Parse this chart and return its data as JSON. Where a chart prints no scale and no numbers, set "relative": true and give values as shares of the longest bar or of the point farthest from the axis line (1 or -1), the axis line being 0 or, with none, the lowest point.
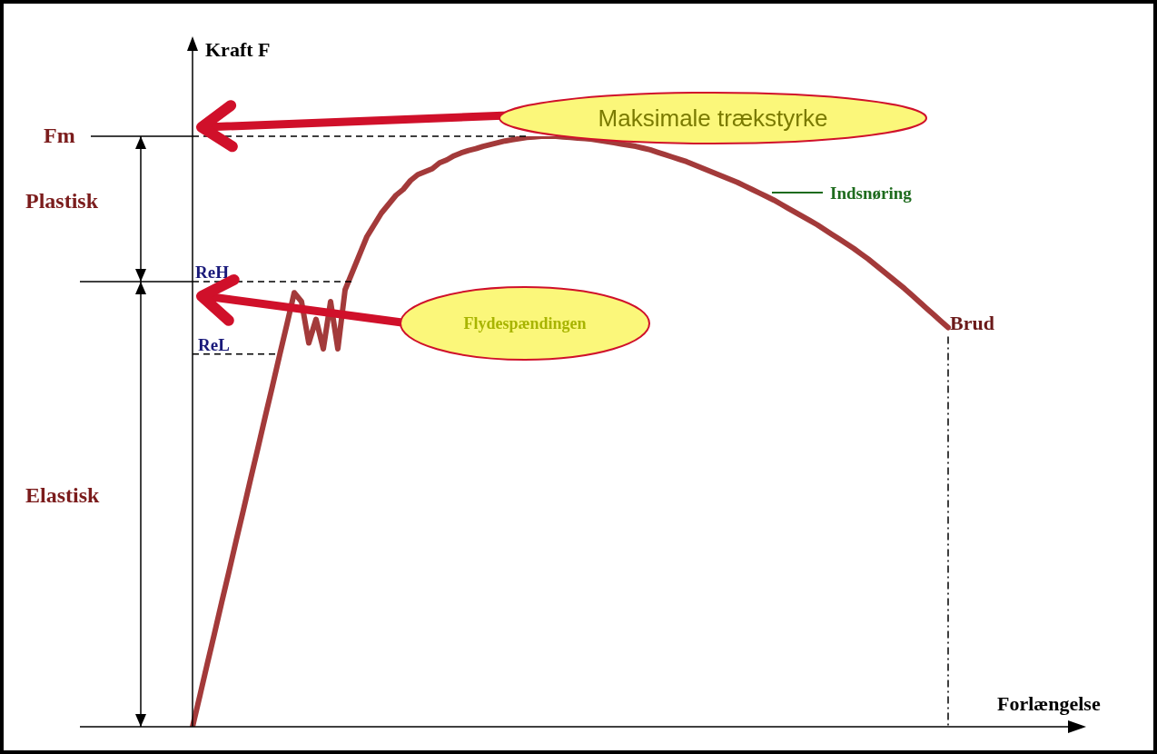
{
  "chart_data": {
    "type": "line",
    "relative": true,
    "ylabel": "Kraft F",
    "xlabel": "Forlængelse",
    "categories": [
      null,
      null,
      null,
      null,
      null,
      null,
      null,
      null,
      null,
      null,
      null,
      null,
      null,
      null,
      null,
      null,
      null,
      null,
      null,
      null,
      null,
      null,
      null,
      null,
      null,
      null,
      null,
      null,
      null,
      null,
      null,
      null,
      null,
      null,
      null,
      null,
      null,
      null,
      null,
      null,
      null,
      null,
      null,
      null,
      null,
      null,
      null,
      null,
      null,
      null,
      null,
      null,
      null,
      null,
      null,
      null,
      null,
      null,
      null,
      null,
      null,
      null,
      null,
      null,
      null,
      null,
      null,
      null,
      null,
      null,
      null,
      null,
      null,
      null,
      null,
      null,
      null,
      null,
      null,
      null,
      null,
      null,
      null,
      null,
      null,
      null,
      null,
      null,
      null,
      null,
      null,
      null,
      null,
      null,
      null,
      null,
      null,
      null,
      null,
      null,
      null,
      null,
      null,
      null,
      null,
      null,
      null,
      null,
      null,
      null,
      null,
      null,
      null,
      null,
      null,
      null,
      null,
      null,
      null,
      null,
      null,
      null
    ],
    "series": [
      {
        "color": "#a33a3a",
        "values": [
          0,
          0.052,
          0.105,
          0.157,
          0.21,
          0.262,
          0.315,
          0.367,
          0.42,
          0.472,
          0.525,
          0.577,
          0.63,
          0.682,
          0.735,
          0.72,
          0.65,
          0.69,
          0.64,
          0.72,
          0.64,
          0.74,
          0.77,
          0.8,
          0.83,
          0.85,
          0.87,
          0.885,
          0.9,
          0.91,
          0.925,
          0.935,
          0.94,
          0.945,
          0.955,
          0.96,
          0.967,
          0.972,
          0.976,
          0.979,
          0.983,
          0.986,
          0.989,
          0.992,
          0.994,
          0.996,
          0.998,
          0.999,
          1,
          1,
          1,
          0.999,
          0.998,
          0.997,
          0.996,
          0.995,
          0.993,
          0.991,
          0.989,
          0.987,
          0.985,
          0.983,
          0.98,
          0.977,
          0.973,
          0.969,
          0.965,
          0.961,
          0.957,
          0.952,
          0.947,
          0.942,
          0.937,
          0.932,
          0.927,
          0.922,
          0.916,
          0.91,
          0.904,
          0.898,
          0.892,
          0.885,
          0.878,
          0.871,
          0.864,
          0.857,
          0.85,
          0.842,
          0.834,
          0.826,
          0.818,
          0.81,
          0.801,
          0.792,
          0.782,
          0.772,
          0.762,
          0.752,
          0.742,
          0.731,
          0.72,
          0.709,
          0.698,
          0.687,
          0.676,
          null,
          null,
          null,
          null,
          null,
          null,
          null,
          null,
          null,
          null,
          null,
          null,
          null,
          null,
          null,
          null,
          null
        ]
      }
    ],
    "ref_lines": [
      {
        "axis": "y",
        "value": 1,
        "label": "Fm",
        "color": "#000000",
        "line_style": "dashed"
      },
      {
        "axis": "y",
        "value": 0.754,
        "label": "ReH",
        "color": "#000000",
        "line_style": "dashed"
      },
      {
        "axis": "y",
        "value": 0.631,
        "label": "ReL",
        "color": "#000000",
        "line_style": "dashed"
      }
    ],
    "annotations": [
      "Maksimale trækstyrke",
      "Flydespændingen",
      "Indsnøring",
      "Brud",
      "Plastisk",
      "Elastisk"
    ],
    "marker": "none",
    "line_style": "solid"
  }
}
